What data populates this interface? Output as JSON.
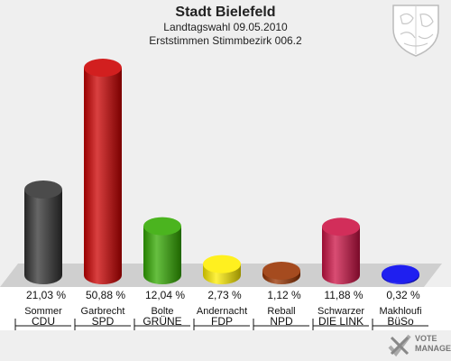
{
  "header": {
    "title": "Stadt Bielefeld",
    "subtitle": "Landtagswahl 09.05.2010",
    "subtitle2": "Erststimmen Stimmbezirk 006.2"
  },
  "chart_data": {
    "type": "bar",
    "title": "Stadt Bielefeld",
    "subtitle": "Landtagswahl 09.05.2010 / Erststimmen Stimmbezirk 006.2",
    "categories": [
      "CDU",
      "SPD",
      "GRÜNE",
      "FDP",
      "NPD",
      "DIE LINKE",
      "BüSo"
    ],
    "candidates": [
      "Sommer",
      "Garbrecht",
      "Bolte",
      "Andernacht",
      "Reball",
      "Schwarzer",
      "Makhloufi"
    ],
    "values": [
      21.03,
      50.88,
      12.04,
      2.73,
      1.12,
      11.88,
      0.32
    ],
    "value_labels": [
      "21,03 %",
      "50,88 %",
      "12,04 %",
      "2,73 %",
      "1,12 %",
      "11,88 %",
      "0,32 %"
    ],
    "category_labels": [
      "CDU",
      "SPD",
      "GRÜNE",
      "FDP",
      "NPD",
      "DIE LINK",
      "BüSo"
    ],
    "colors": [
      "#333333",
      "#cc0000",
      "#33aa00",
      "#ffee00",
      "#993300",
      "#cc1144",
      "#0000ee"
    ],
    "ylim": [
      0,
      52
    ],
    "xlabel": "",
    "ylabel": "",
    "grid": false,
    "legend": "none"
  },
  "logo": {
    "line1": "VOTE",
    "line2": "MANAGER"
  },
  "icons": {
    "seal": "coat-of-arms-icon",
    "logo": "vote-manager-logo-icon"
  }
}
